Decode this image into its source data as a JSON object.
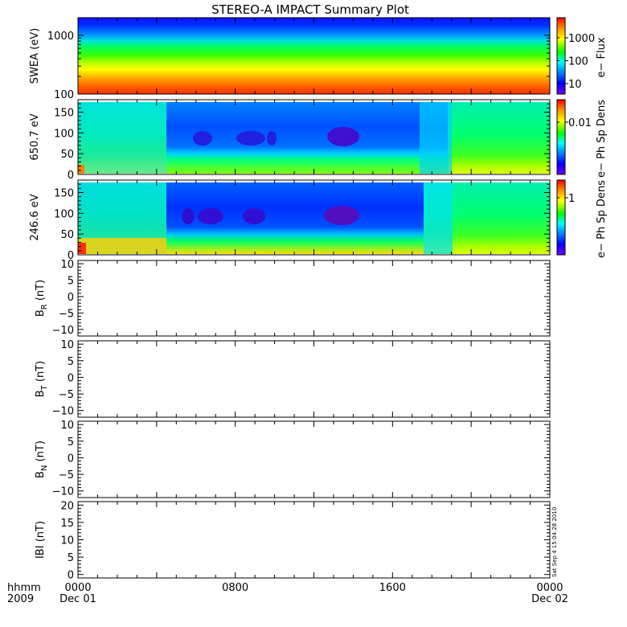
{
  "title": "STEREO-A IMPACT Summary Plot",
  "timestamp": "Sat Sep  4 15:04:28 2010",
  "x_axis": {
    "label_line1": "hhmm",
    "label_line2": "2009",
    "ticks": [
      {
        "hour": 0,
        "line1": "0000",
        "line2": "Dec 01"
      },
      {
        "hour": 8,
        "line1": "0800",
        "line2": ""
      },
      {
        "hour": 16,
        "line1": "1600",
        "line2": ""
      },
      {
        "hour": 24,
        "line1": "0000",
        "line2": "Dec 02"
      }
    ],
    "range_hours": [
      0,
      24
    ]
  },
  "colors": {
    "spectrogram_scale": [
      "#7a00ff",
      "#0000ff",
      "#0090ff",
      "#00ffff",
      "#00ff00",
      "#ffff00",
      "#ff9000",
      "#ff0000"
    ]
  },
  "chart_data": [
    {
      "type": "heatmap",
      "ylabel": "SWEA (eV)",
      "yscale": "log",
      "ylim": [
        100,
        2000
      ],
      "yticks": [
        "100",
        "1000"
      ],
      "colorbar_label": "e− Flux",
      "colorbar_ticks": [
        "10",
        "100",
        "1000"
      ],
      "description_bands": "flux decreases with energy; uniform over day"
    },
    {
      "type": "heatmap",
      "ylabel": "650.7 eV",
      "ylim": [
        0,
        180
      ],
      "yticks": [
        "0",
        "50",
        "100",
        "150"
      ],
      "colorbar_label": "e− Ph Sp Dens",
      "colorbar_ticks": [
        "0.01"
      ],
      "low_interval_hours": [
        4.5,
        18.2
      ]
    },
    {
      "type": "heatmap",
      "ylabel": "246.6 eV",
      "ylim": [
        0,
        180
      ],
      "yticks": [
        "0",
        "50",
        "100",
        "150"
      ],
      "colorbar_label": "e− Ph Sp Dens",
      "colorbar_ticks": [
        "1"
      ],
      "low_interval_hours": [
        4.5,
        18.2
      ]
    },
    {
      "type": "line",
      "ylabel_main": "B",
      "ylabel_sub": "R",
      "ylabel_unit": " (nT)",
      "ylim": [
        -12,
        11
      ],
      "yticks": [
        "−10",
        "−5",
        "0",
        "5",
        "10"
      ],
      "series": []
    },
    {
      "type": "line",
      "ylabel_main": "B",
      "ylabel_sub": "T",
      "ylabel_unit": " (nT)",
      "ylim": [
        -12,
        11
      ],
      "yticks": [
        "−10",
        "−5",
        "0",
        "5",
        "10"
      ],
      "series": []
    },
    {
      "type": "line",
      "ylabel_main": "B",
      "ylabel_sub": "N",
      "ylabel_unit": " (nT)",
      "ylim": [
        -12,
        11
      ],
      "yticks": [
        "−10",
        "−5",
        "0",
        "5",
        "10"
      ],
      "series": []
    },
    {
      "type": "line",
      "ylabel_main": "IBI",
      "ylabel_sub": "",
      "ylabel_unit": " (nT)",
      "ylim": [
        -1,
        21
      ],
      "yticks": [
        "0",
        "5",
        "10",
        "15",
        "20"
      ],
      "series": []
    }
  ]
}
